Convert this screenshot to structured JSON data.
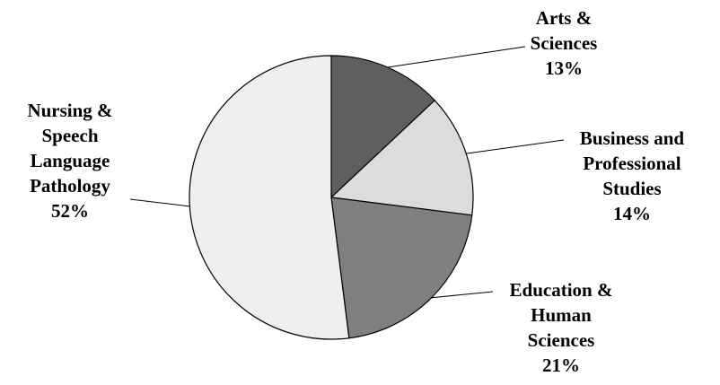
{
  "chart_data": {
    "type": "pie",
    "title": "",
    "start_angle_deg": 0,
    "direction": "clockwise",
    "slices": [
      {
        "label_lines": [
          "Arts &",
          "Sciences"
        ],
        "value_label": "13%",
        "value": 13,
        "color": "#5f5f5f"
      },
      {
        "label_lines": [
          "Business and",
          "Professional",
          "Studies"
        ],
        "value_label": "14%",
        "value": 14,
        "color": "#dcdcdc"
      },
      {
        "label_lines": [
          "Education &",
          "Human",
          "Sciences"
        ],
        "value_label": "21%",
        "value": 21,
        "color": "#7f7f7f"
      },
      {
        "label_lines": [
          "Nursing &",
          "Speech",
          "Language",
          "Pathology"
        ],
        "value_label": "52%",
        "value": 52,
        "color": "#efefef"
      }
    ]
  }
}
